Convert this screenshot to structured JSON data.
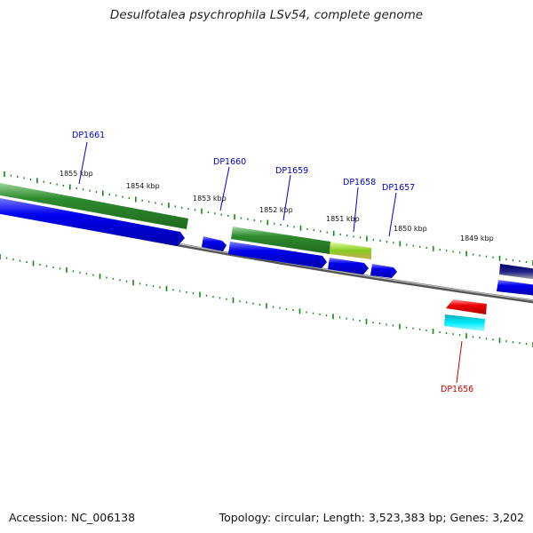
{
  "title": "Desulfotalea psychrophila LSv54, complete genome",
  "footer": {
    "accession": "Accession: NC_006138",
    "summary": "Topology: circular; Length: 3,523,383 bp; Genes: 3,202"
  },
  "colors": {
    "forward_cds": "#2e8b2e",
    "reverse_cds": "#0000ee",
    "rna_red": "#ee0000",
    "rna_cyan": "#00ddee",
    "label_blue": "#0000cc",
    "label_red": "#cc0000",
    "tick_green": "#118811",
    "backbone": "#888888"
  },
  "scale_labels": [
    "1855 kbp",
    "1854 kbp",
    "1853 kbp",
    "1852 kbp",
    "1851 kbp",
    "1850 kbp",
    "1849 kbp"
  ],
  "gene_labels": [
    {
      "name": "DP1661",
      "color": "blue"
    },
    {
      "name": "DP1660",
      "color": "blue"
    },
    {
      "name": "DP1659",
      "color": "blue"
    },
    {
      "name": "DP1658",
      "color": "blue"
    },
    {
      "name": "DP1657",
      "color": "blue"
    },
    {
      "name": "DP1656",
      "color": "red"
    }
  ]
}
